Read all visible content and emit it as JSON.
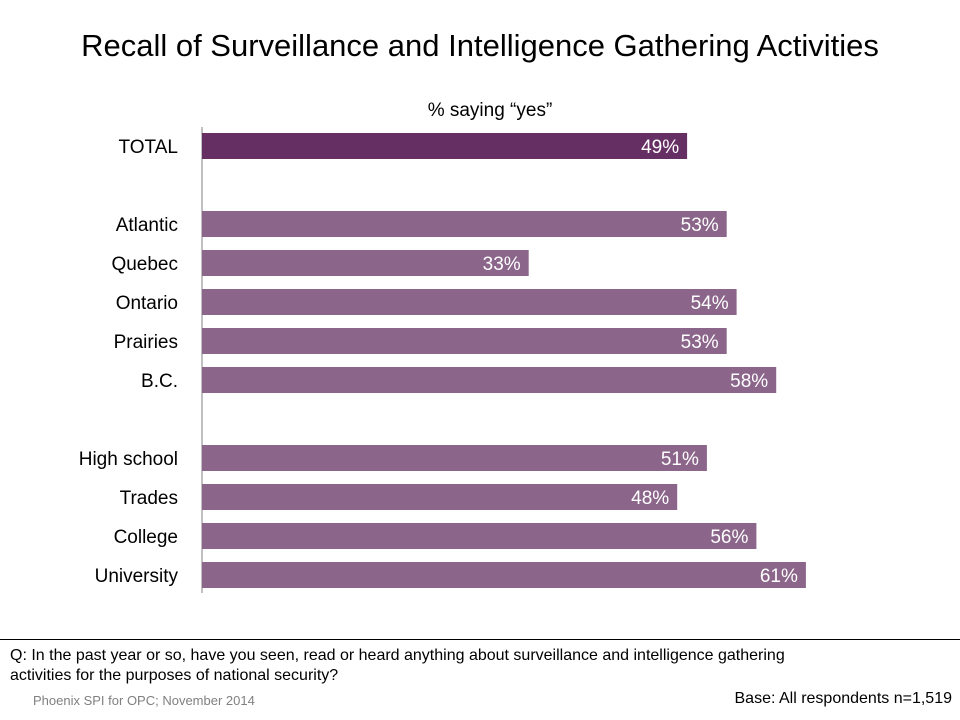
{
  "title": "Recall of Surveillance and Intelligence Gathering Activities",
  "question": "Q: In the past year or so, have you seen, read or heard anything about surveillance and intelligence gathering activities for the purposes of national security?",
  "source": "Phoenix SPI for OPC; November 2014",
  "base": "Base: All respondents n=1,519",
  "colors": {
    "total_bar": "#662f64",
    "group_bar": "#8b658a",
    "axis": "#808080"
  },
  "chart_data": {
    "type": "bar",
    "orientation": "horizontal",
    "title": "Recall of Surveillance and Intelligence Gathering Activities",
    "subtitle": "% saying  “yes”",
    "xlim": [
      0,
      100
    ],
    "unit": "%",
    "categories": [
      "TOTAL",
      "Atlantic",
      "Quebec",
      "Ontario",
      "Prairies",
      "B.C.",
      "High school",
      "Trades",
      "College",
      "University"
    ],
    "values": [
      49,
      53,
      33,
      54,
      53,
      58,
      51,
      48,
      56,
      61
    ],
    "labels": [
      "49%",
      "53%",
      "33%",
      "54%",
      "53%",
      "58%",
      "51%",
      "48%",
      "56%",
      "61%"
    ],
    "groups": [
      "total",
      "region",
      "region",
      "region",
      "region",
      "region",
      "education",
      "education",
      "education",
      "education"
    ]
  }
}
